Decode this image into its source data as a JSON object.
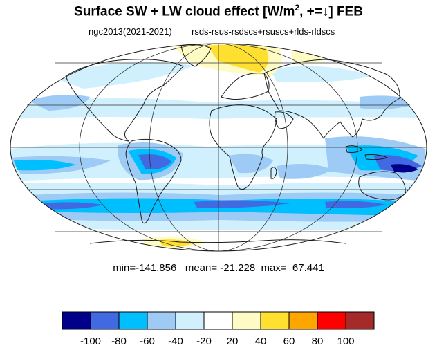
{
  "title": {
    "main": "Surface SW + LW cloud effect [W/m",
    "sup": "2",
    "tail": ", +=↓]  FEB"
  },
  "subtitle": {
    "left": "ngc2013(2021-2021)",
    "right": "rsds-rsus-rsdscs+rsuscs+rlds-rldscs"
  },
  "stats": {
    "text": "min=-141.856   mean= -21.228  max=  67.441"
  },
  "colors": {
    "c_lt_neg100": "#00008b",
    "c_neg100_neg80": "#4169e1",
    "c_neg80_neg60": "#00bfff",
    "c_neg60_neg40": "#9ecbf5",
    "c_neg40_neg20": "#d0f0fd",
    "c_neg20_20": "#ffffff",
    "c_20_40": "#fffbc4",
    "c_40_60": "#ffe030",
    "c_60_80": "#ffa500",
    "c_80_100": "#ff0000",
    "c_gt_100": "#a52a2a",
    "coastline": "#1a1a1a",
    "gridline": "#333333"
  },
  "colorbar": {
    "labels": [
      "-100",
      "-80",
      "-60",
      "-40",
      "-20",
      "20",
      "40",
      "60",
      "80",
      "100"
    ]
  }
}
